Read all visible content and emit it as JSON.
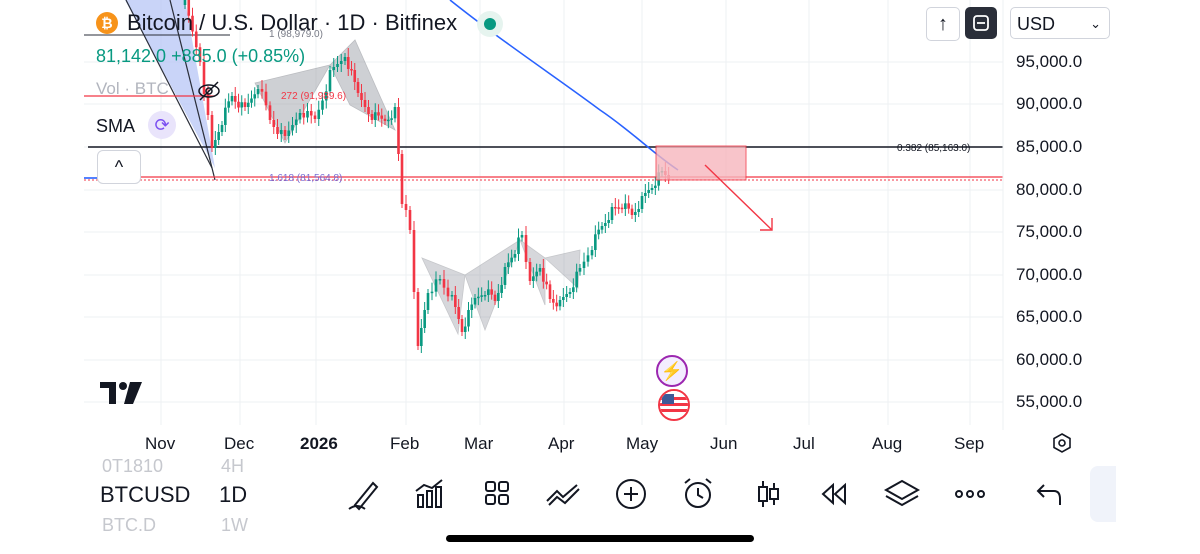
{
  "header": {
    "title": "Bitcoin / U.S. Dollar · 1D · Bitfinex",
    "price_line": "81,142.0 +885.0 (+0.85%)",
    "volume_label": "Vol · BTC",
    "indicator_label": "SMA",
    "coin_glyph": "₿"
  },
  "toolbar_top": {
    "currency_value": "USD",
    "currency_chevron": "⌄",
    "up_glyph": "↑",
    "collapse_glyph": "^"
  },
  "price_axis": {
    "ticks": [
      "95,000.0",
      "90,000.0",
      "85,000.0",
      "80,000.0",
      "75,000.0",
      "70,000.0",
      "65,000.0",
      "60,000.0",
      "55,000.0"
    ]
  },
  "time_axis": {
    "months": [
      "Nov",
      "Dec",
      "2026",
      "Feb",
      "Mar",
      "Apr",
      "May",
      "Jun",
      "Jul",
      "Aug",
      "Sep"
    ]
  },
  "annotations": {
    "fib_top": "1 (98,979.0)",
    "fib_mid": "272 (91,989.6)",
    "fib_low": "1.618 (81,564.8)",
    "fib_right": "0.382 (85,163.0)"
  },
  "bottom_bar": {
    "symbol": "BTCUSD",
    "interval": "1D",
    "ghost_symbol_above": "0T1810",
    "ghost_interval_above": "4H",
    "ghost_symbol_below": "BTC.D",
    "ghost_interval_below": "1W"
  },
  "colors": {
    "up": "#089981",
    "down": "#f23645",
    "sma": "#2962ff",
    "target_box": "#f7b6bd",
    "pattern_fill": "#b2b5be"
  }
}
